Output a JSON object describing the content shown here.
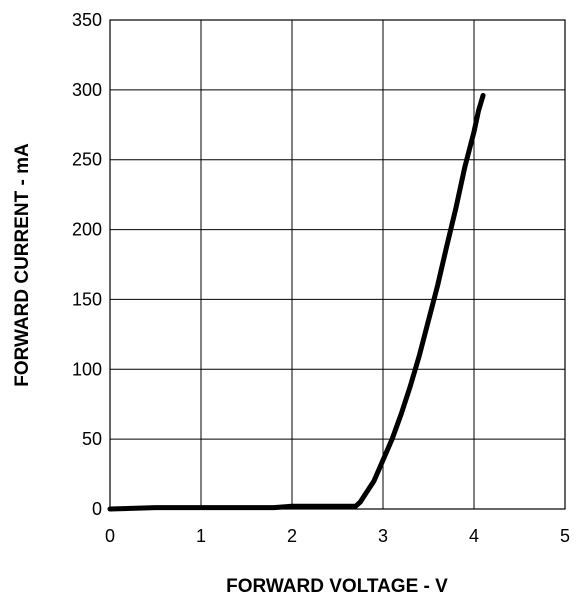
{
  "chart_data": {
    "type": "line",
    "title": "",
    "xlabel": "FORWARD VOLTAGE - V",
    "ylabel": "FORWARD CURRENT - mA",
    "xlim": [
      0,
      5
    ],
    "ylim": [
      0,
      350
    ],
    "xticks": [
      "0",
      "1",
      "2",
      "3",
      "4",
      "5"
    ],
    "yticks": [
      "0",
      "50",
      "100",
      "150",
      "200",
      "250",
      "300",
      "350"
    ],
    "grid": true,
    "legend": "none",
    "line_color": "#000000",
    "series": [
      {
        "x": [
          0,
          0.5,
          1.0,
          1.5,
          1.8,
          2.0,
          2.3,
          2.6,
          2.7,
          2.75,
          2.8,
          2.9,
          3.0,
          3.1,
          3.2,
          3.3,
          3.4,
          3.5,
          3.6,
          3.7,
          3.8,
          3.9,
          4.0,
          4.05,
          4.1
        ],
        "y": [
          0,
          1,
          1,
          1,
          1,
          2,
          2,
          2,
          2,
          5,
          10,
          20,
          35,
          50,
          68,
          88,
          110,
          135,
          160,
          188,
          215,
          245,
          270,
          285,
          296
        ]
      }
    ]
  }
}
